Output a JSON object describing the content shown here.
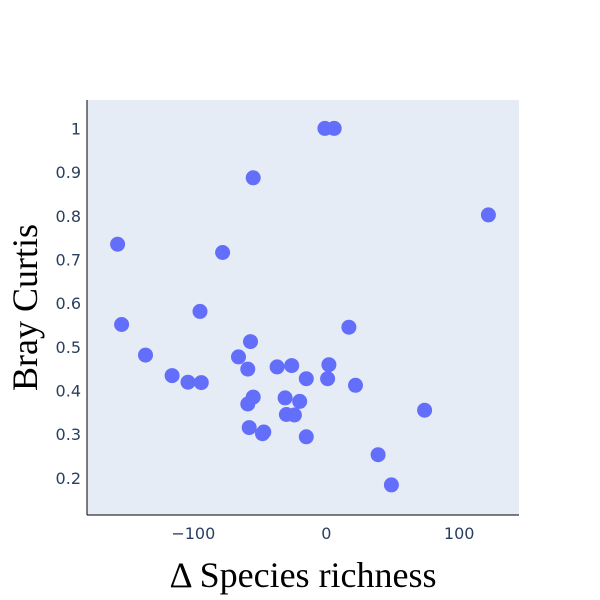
{
  "chart_data": {
    "type": "scatter",
    "title": "",
    "xlabel": "Δ Species richness",
    "ylabel": "Bray Curtis",
    "xlim": [
      -180,
      145
    ],
    "ylim": [
      0.115,
      1.065
    ],
    "x_ticks": [
      -100,
      0,
      100
    ],
    "x_tick_labels": [
      "−100",
      "0",
      "100"
    ],
    "y_ticks": [
      0.2,
      0.3,
      0.4,
      0.5,
      0.6,
      0.7,
      0.8,
      0.9,
      1
    ],
    "y_tick_labels": [
      "0.2",
      "0.3",
      "0.4",
      "0.5",
      "0.6",
      "0.7",
      "0.8",
      "0.9",
      "1"
    ],
    "grid": false,
    "legend": "none",
    "colors": {
      "plot_bg": "#e5ecf6",
      "marker": "#636efa",
      "axis_line": "#000000",
      "tick_text": "#2a3f5f"
    },
    "points": [
      {
        "x": -1,
        "y": 1.0
      },
      {
        "x": 6,
        "y": 1.0
      },
      {
        "x": -55,
        "y": 0.887
      },
      {
        "x": 122,
        "y": 0.802
      },
      {
        "x": -157,
        "y": 0.735
      },
      {
        "x": -78,
        "y": 0.716
      },
      {
        "x": -95,
        "y": 0.581
      },
      {
        "x": -154,
        "y": 0.551
      },
      {
        "x": 17,
        "y": 0.545
      },
      {
        "x": -57,
        "y": 0.512
      },
      {
        "x": -136,
        "y": 0.481
      },
      {
        "x": -66,
        "y": 0.477
      },
      {
        "x": 2,
        "y": 0.459
      },
      {
        "x": -26,
        "y": 0.457
      },
      {
        "x": -37,
        "y": 0.454
      },
      {
        "x": -59,
        "y": 0.449
      },
      {
        "x": -116,
        "y": 0.434
      },
      {
        "x": -104,
        "y": 0.419
      },
      {
        "x": -94,
        "y": 0.418
      },
      {
        "x": -15,
        "y": 0.427
      },
      {
        "x": 1,
        "y": 0.427
      },
      {
        "x": 22,
        "y": 0.412
      },
      {
        "x": -55,
        "y": 0.385
      },
      {
        "x": -31,
        "y": 0.383
      },
      {
        "x": -20,
        "y": 0.375
      },
      {
        "x": -59,
        "y": 0.369
      },
      {
        "x": 74,
        "y": 0.355
      },
      {
        "x": -30,
        "y": 0.345
      },
      {
        "x": -24,
        "y": 0.344
      },
      {
        "x": -58,
        "y": 0.315
      },
      {
        "x": -47,
        "y": 0.305
      },
      {
        "x": -48,
        "y": 0.301
      },
      {
        "x": -15,
        "y": 0.294
      },
      {
        "x": 39,
        "y": 0.253
      },
      {
        "x": 49,
        "y": 0.184
      }
    ]
  }
}
